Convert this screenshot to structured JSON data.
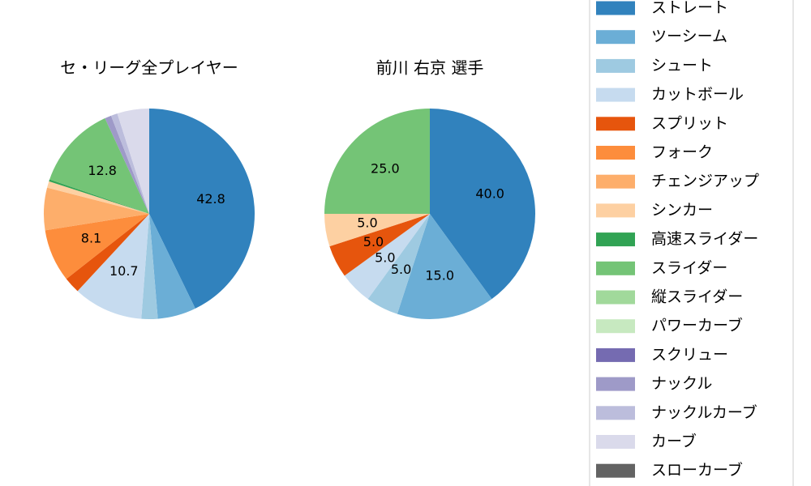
{
  "chart_data": [
    {
      "type": "pie",
      "title": "セ・リーグ全プレイヤー",
      "categories": [
        "ストレート",
        "ツーシーム",
        "シュート",
        "カットボール",
        "スプリット",
        "フォーク",
        "チェンジアップ",
        "シンカー",
        "高速スライダー",
        "スライダー",
        "縦スライダー",
        "パワーカーブ",
        "スクリュー",
        "ナックル",
        "ナックルカーブ",
        "カーブ",
        "スローカーブ"
      ],
      "colors": [
        "#3182bd",
        "#6baed6",
        "#9ecae1",
        "#c6dbef",
        "#e6550d",
        "#fd8d3c",
        "#fdae6b",
        "#fdd0a2",
        "#31a354",
        "#74c476",
        "#a1d99b",
        "#c7e9c0",
        "#756bb1",
        "#9e9ac8",
        "#bcbddc",
        "#dadaeb",
        "#636363"
      ],
      "values": [
        42.8,
        5.9,
        2.5,
        10.7,
        2.5,
        8.1,
        6.5,
        1.0,
        0.3,
        12.8,
        0,
        0,
        0,
        1.0,
        1.0,
        4.9,
        0
      ],
      "value_labels": [
        "42.8",
        null,
        null,
        "10.7",
        null,
        "8.1",
        null,
        null,
        null,
        "12.8",
        null,
        null,
        null,
        null,
        null,
        null,
        null
      ],
      "legend": "right"
    },
    {
      "type": "pie",
      "title": "前川 右京  選手",
      "categories": [
        "ストレート",
        "ツーシーム",
        "シュート",
        "カットボール",
        "スプリット",
        "フォーク",
        "チェンジアップ",
        "シンカー",
        "高速スライダー",
        "スライダー",
        "縦スライダー",
        "パワーカーブ",
        "スクリュー",
        "ナックル",
        "ナックルカーブ",
        "カーブ",
        "スローカーブ"
      ],
      "colors": [
        "#3182bd",
        "#6baed6",
        "#9ecae1",
        "#c6dbef",
        "#e6550d",
        "#fd8d3c",
        "#fdae6b",
        "#fdd0a2",
        "#31a354",
        "#74c476",
        "#a1d99b",
        "#c7e9c0",
        "#756bb1",
        "#9e9ac8",
        "#bcbddc",
        "#dadaeb",
        "#636363"
      ],
      "values": [
        40.0,
        15.0,
        5.0,
        5.0,
        5.0,
        0,
        0,
        5.0,
        0,
        25.0,
        0,
        0,
        0,
        0,
        0,
        0,
        0
      ],
      "value_labels": [
        "40.0",
        "15.0",
        "5.0",
        "5.0",
        "5.0",
        null,
        null,
        "5.0",
        null,
        "25.0",
        null,
        null,
        null,
        null,
        null,
        null,
        null
      ]
    }
  ]
}
